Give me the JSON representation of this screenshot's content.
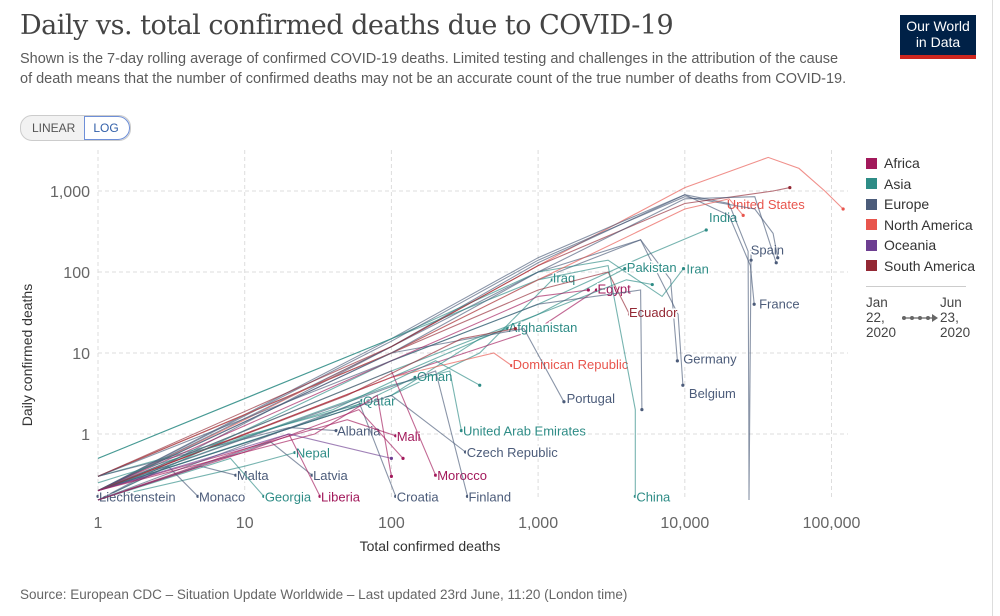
{
  "header": {
    "title": "Daily vs. total confirmed deaths due to COVID-19",
    "subtitle": "Shown is the 7-day rolling average of confirmed COVID-19 deaths. Limited testing and challenges in the attribution of the cause of death means that the number of confirmed deaths may not be an accurate count of the true number of deaths from COVID-19.",
    "scale_toggle": {
      "linear": "LINEAR",
      "log": "LOG",
      "selected": "LOG"
    },
    "logo": {
      "line1": "Our World",
      "line2": "in Data",
      "bg": "#002147",
      "accent": "#ce261e"
    }
  },
  "legend": {
    "items": [
      {
        "label": "Africa",
        "color": "#a2195b"
      },
      {
        "label": "Asia",
        "color": "#2e8c86"
      },
      {
        "label": "Europe",
        "color": "#4c5c7a"
      },
      {
        "label": "North America",
        "color": "#e8554d"
      },
      {
        "label": "Oceania",
        "color": "#6d3e91"
      },
      {
        "label": "South America",
        "color": "#932834"
      }
    ],
    "start_date": [
      "Jan",
      "22,",
      "2020"
    ],
    "end_date": [
      "Jun",
      "23,",
      "2020"
    ]
  },
  "footer": {
    "source": "Source: European CDC – Situation Update Worldwide – Last updated 23rd June, 11:20 (London time)"
  },
  "chart_data": {
    "type": "line",
    "xlabel": "Total confirmed deaths",
    "ylabel": "Daily confirmed deaths",
    "x_scale": "log",
    "y_scale": "log",
    "xlim": [
      1,
      130000
    ],
    "ylim": [
      0.15,
      2600
    ],
    "x_ticks": [
      {
        "v": 1,
        "label": "1"
      },
      {
        "v": 10,
        "label": "10"
      },
      {
        "v": 100,
        "label": "100"
      },
      {
        "v": 1000,
        "label": "1,000"
      },
      {
        "v": 10000,
        "label": "10,000"
      },
      {
        "v": 100000,
        "label": "100,000"
      }
    ],
    "y_ticks": [
      {
        "v": 1,
        "label": "1"
      },
      {
        "v": 10,
        "label": "10"
      },
      {
        "v": 100,
        "label": "100"
      },
      {
        "v": 1000,
        "label": "1,000"
      }
    ],
    "grid": true,
    "legend_position": "right",
    "series": [
      {
        "name": "United States",
        "region": "North America",
        "points": [
          [
            1,
            0.2
          ],
          [
            10,
            1.5
          ],
          [
            100,
            12
          ],
          [
            1000,
            120
          ],
          [
            10000,
            1100
          ],
          [
            37000,
            2600
          ],
          [
            60000,
            1900
          ],
          [
            90000,
            1000
          ],
          [
            120000,
            600
          ]
        ],
        "label_at": [
          19000,
          690
        ]
      },
      {
        "name": "India",
        "region": "Asia",
        "points": [
          [
            1,
            0.15
          ],
          [
            100,
            8
          ],
          [
            1000,
            40
          ],
          [
            5000,
            150
          ],
          [
            14000,
            330
          ]
        ],
        "label_at": [
          14400,
          480
        ]
      },
      {
        "name": "Spain",
        "region": "Europe",
        "points": [
          [
            1,
            0.2
          ],
          [
            100,
            15
          ],
          [
            1000,
            150
          ],
          [
            10000,
            900
          ],
          [
            20000,
            700
          ],
          [
            27000,
            180
          ],
          [
            27300,
            1.5
          ],
          [
            27400,
            0.15
          ],
          [
            28300,
            200
          ],
          [
            28300,
            140
          ]
        ],
        "label_at": [
          27700,
          190
        ]
      },
      {
        "name": "France",
        "region": "Europe",
        "points": [
          [
            1,
            0.15
          ],
          [
            100,
            12
          ],
          [
            1000,
            130
          ],
          [
            10000,
            900
          ],
          [
            20000,
            500
          ],
          [
            28000,
            120
          ],
          [
            29700,
            40
          ]
        ],
        "label_at": [
          31600,
          41
        ]
      },
      {
        "name": "Germany",
        "region": "Europe",
        "points": [
          [
            1,
            0.2
          ],
          [
            100,
            10
          ],
          [
            1000,
            80
          ],
          [
            5000,
            250
          ],
          [
            8000,
            80
          ],
          [
            8900,
            8
          ]
        ],
        "label_at": [
          9600,
          8.5
        ]
      },
      {
        "name": "Belgium",
        "region": "Europe",
        "points": [
          [
            1,
            0.2
          ],
          [
            100,
            12
          ],
          [
            1000,
            100
          ],
          [
            5000,
            250
          ],
          [
            9000,
            30
          ],
          [
            9700,
            4
          ]
        ],
        "label_at": [
          10500,
          3.2
        ]
      },
      {
        "name": "Iran",
        "region": "Asia",
        "points": [
          [
            1,
            0.5
          ],
          [
            100,
            15
          ],
          [
            1000,
            100
          ],
          [
            3000,
            140
          ],
          [
            7000,
            50
          ],
          [
            9800,
            110
          ]
        ],
        "label_at": [
          10100,
          110
        ]
      },
      {
        "name": "Pakistan",
        "region": "Asia",
        "points": [
          [
            1,
            0.2
          ],
          [
            100,
            5
          ],
          [
            1000,
            30
          ],
          [
            3900,
            110
          ]
        ],
        "label_at": [
          3960,
          115
        ]
      },
      {
        "name": "Iraq",
        "region": "Asia",
        "points": [
          [
            1,
            0.3
          ],
          [
            100,
            3
          ],
          [
            400,
            10
          ],
          [
            1250,
            80
          ]
        ],
        "label_at": [
          1240,
          85
        ]
      },
      {
        "name": "Egypt",
        "region": "Africa",
        "points": [
          [
            1,
            0.2
          ],
          [
            100,
            5
          ],
          [
            1000,
            20
          ],
          [
            2500,
            60
          ]
        ],
        "label_at": [
          2500,
          63
        ]
      },
      {
        "name": "Ecuador",
        "region": "South America",
        "points": [
          [
            1,
            0.3
          ],
          [
            100,
            10
          ],
          [
            1000,
            60
          ],
          [
            3000,
            100
          ],
          [
            4200,
            30
          ]
        ],
        "label_at": [
          4100,
          32
        ]
      },
      {
        "name": "Afghanistan",
        "region": "Asia",
        "points": [
          [
            1,
            0.2
          ],
          [
            100,
            3
          ],
          [
            400,
            15
          ],
          [
            620,
            20
          ]
        ],
        "label_at": [
          620,
          21
        ]
      },
      {
        "name": "Dominican Republic",
        "region": "North America",
        "points": [
          [
            1,
            0.2
          ],
          [
            100,
            5
          ],
          [
            500,
            10
          ],
          [
            660,
            7
          ]
        ],
        "label_at": [
          660,
          7.3
        ]
      },
      {
        "name": "Oman",
        "region": "Asia",
        "points": [
          [
            1,
            0.2
          ],
          [
            50,
            2
          ],
          [
            145,
            5
          ]
        ],
        "label_at": [
          147,
          5.2
        ]
      },
      {
        "name": "Portugal",
        "region": "Europe",
        "points": [
          [
            1,
            0.3
          ],
          [
            100,
            10
          ],
          [
            800,
            20
          ],
          [
            1500,
            2.5
          ]
        ],
        "label_at": [
          1540,
          2.8
        ]
      },
      {
        "name": "Qatar",
        "region": "Asia",
        "points": [
          [
            1,
            0.2
          ],
          [
            30,
            1.5
          ],
          [
            63,
            2.6
          ]
        ],
        "label_at": [
          63,
          2.6
        ]
      },
      {
        "name": "Albania",
        "region": "Europe",
        "points": [
          [
            1,
            0.3
          ],
          [
            20,
            1.2
          ],
          [
            42,
            1.1
          ]
        ],
        "label_at": [
          42,
          1.1
        ]
      },
      {
        "name": "Mali",
        "region": "Africa",
        "points": [
          [
            1,
            0.2
          ],
          [
            50,
            1.5
          ],
          [
            107,
            0.95
          ]
        ],
        "label_at": [
          107,
          0.95
        ]
      },
      {
        "name": "United Arab Emirates",
        "region": "Asia",
        "points": [
          [
            1,
            0.2
          ],
          [
            100,
            4
          ],
          [
            250,
            6
          ],
          [
            300,
            1.1
          ]
        ],
        "label_at": [
          303,
          1.1
        ]
      },
      {
        "name": "Czech Republic",
        "region": "Europe",
        "points": [
          [
            1,
            0.2
          ],
          [
            100,
            3
          ],
          [
            320,
            0.6
          ]
        ],
        "label_at": [
          321,
          0.6
        ]
      },
      {
        "name": "Nepal",
        "region": "Asia",
        "points": [
          [
            1,
            0.15
          ],
          [
            10,
            0.4
          ],
          [
            22,
            0.59
          ]
        ],
        "label_at": [
          22,
          0.59
        ]
      },
      {
        "name": "Malta",
        "region": "Europe",
        "points": [
          [
            1,
            0.15
          ],
          [
            5,
            0.4
          ],
          [
            8.7,
            0.31
          ]
        ],
        "label_at": [
          8.7,
          0.31
        ]
      },
      {
        "name": "Latvia",
        "region": "Europe",
        "points": [
          [
            1,
            0.15
          ],
          [
            15,
            0.8
          ],
          [
            28.8,
            0.31
          ]
        ],
        "label_at": [
          28.8,
          0.31
        ]
      },
      {
        "name": "Morocco",
        "region": "Africa",
        "points": [
          [
            1,
            0.2
          ],
          [
            100,
            6
          ],
          [
            200,
            0.31
          ]
        ],
        "label_at": [
          202,
          0.31
        ]
      },
      {
        "name": "Liechtenstein",
        "region": "Europe",
        "points": [
          [
            1,
            0.17
          ]
        ],
        "label_at": [
          1,
          0.17
        ]
      },
      {
        "name": "Monaco",
        "region": "Europe",
        "points": [
          [
            1,
            0.15
          ],
          [
            3,
            0.4
          ],
          [
            4.8,
            0.17
          ]
        ],
        "label_at": [
          4.8,
          0.17
        ]
      },
      {
        "name": "Georgia",
        "region": "Asia",
        "points": [
          [
            1,
            0.15
          ],
          [
            8,
            0.5
          ],
          [
            13.5,
            0.17
          ]
        ],
        "label_at": [
          13.5,
          0.17
        ]
      },
      {
        "name": "Liberia",
        "region": "Africa",
        "points": [
          [
            1,
            0.15
          ],
          [
            20,
            1
          ],
          [
            32.6,
            0.17
          ]
        ],
        "label_at": [
          32.6,
          0.17
        ]
      },
      {
        "name": "Croatia",
        "region": "Europe",
        "points": [
          [
            1,
            0.15
          ],
          [
            60,
            2.5
          ],
          [
            107,
            0.17
          ]
        ],
        "label_at": [
          107,
          0.17
        ]
      },
      {
        "name": "Finland",
        "region": "Europe",
        "points": [
          [
            1,
            0.2
          ],
          [
            200,
            6
          ],
          [
            330,
            0.17
          ]
        ],
        "label_at": [
          330,
          0.17
        ]
      },
      {
        "name": "China",
        "region": "Asia",
        "points": [
          [
            1,
            0.5
          ],
          [
            100,
            15
          ],
          [
            1000,
            80
          ],
          [
            3000,
            120
          ],
          [
            4600,
            2
          ],
          [
            4600,
            0.17
          ]
        ],
        "label_at": [
          4600,
          0.17
        ]
      },
      {
        "name": "",
        "region": "Europe",
        "points": [
          [
            1,
            0.2
          ],
          [
            100,
            14
          ],
          [
            1000,
            140
          ],
          [
            10000,
            850
          ],
          [
            30000,
            600
          ],
          [
            40000,
            300
          ],
          [
            43000,
            150
          ]
        ]
      },
      {
        "name": "",
        "region": "North America",
        "points": [
          [
            1,
            0.3
          ],
          [
            100,
            10
          ],
          [
            1000,
            80
          ],
          [
            10000,
            600
          ],
          [
            20000,
            800
          ],
          [
            25000,
            500
          ]
        ]
      },
      {
        "name": "",
        "region": "South America",
        "points": [
          [
            1,
            0.3
          ],
          [
            100,
            12
          ],
          [
            1000,
            120
          ],
          [
            10000,
            700
          ],
          [
            40000,
            1000
          ],
          [
            52000,
            1100
          ]
        ]
      },
      {
        "name": "",
        "region": "Europe",
        "points": [
          [
            1,
            0.2
          ],
          [
            100,
            10
          ],
          [
            1000,
            100
          ],
          [
            10000,
            800
          ],
          [
            30000,
            850
          ],
          [
            42000,
            130
          ]
        ]
      },
      {
        "name": "",
        "region": "Africa",
        "points": [
          [
            1,
            0.2
          ],
          [
            100,
            8
          ],
          [
            1000,
            50
          ],
          [
            2200,
            60
          ]
        ]
      },
      {
        "name": "",
        "region": "Asia",
        "points": [
          [
            1,
            0.2
          ],
          [
            100,
            6
          ],
          [
            1000,
            30
          ],
          [
            4000,
            80
          ],
          [
            6000,
            70
          ]
        ]
      },
      {
        "name": "",
        "region": "Europe",
        "points": [
          [
            1,
            0.3
          ],
          [
            100,
            8
          ],
          [
            1000,
            40
          ],
          [
            5000,
            60
          ],
          [
            5100,
            2
          ]
        ]
      },
      {
        "name": "",
        "region": "Africa",
        "points": [
          [
            1,
            0.15
          ],
          [
            10,
            0.6
          ],
          [
            60,
            2
          ],
          [
            120,
            0.5
          ]
        ]
      },
      {
        "name": "",
        "region": "South America",
        "points": [
          [
            1,
            0.2
          ],
          [
            50,
            3
          ],
          [
            300,
            15
          ],
          [
            700,
            20
          ]
        ]
      },
      {
        "name": "",
        "region": "Oceania",
        "points": [
          [
            1,
            0.2
          ],
          [
            20,
            1
          ],
          [
            100,
            0.5
          ]
        ]
      },
      {
        "name": "",
        "region": "Africa",
        "points": [
          [
            1,
            0.2
          ],
          [
            30,
            1
          ],
          [
            80,
            3
          ],
          [
            100,
            0.3
          ]
        ]
      },
      {
        "name": "",
        "region": "Asia",
        "points": [
          [
            1,
            0.25
          ],
          [
            40,
            2
          ],
          [
            200,
            8
          ],
          [
            400,
            4
          ]
        ]
      }
    ]
  }
}
